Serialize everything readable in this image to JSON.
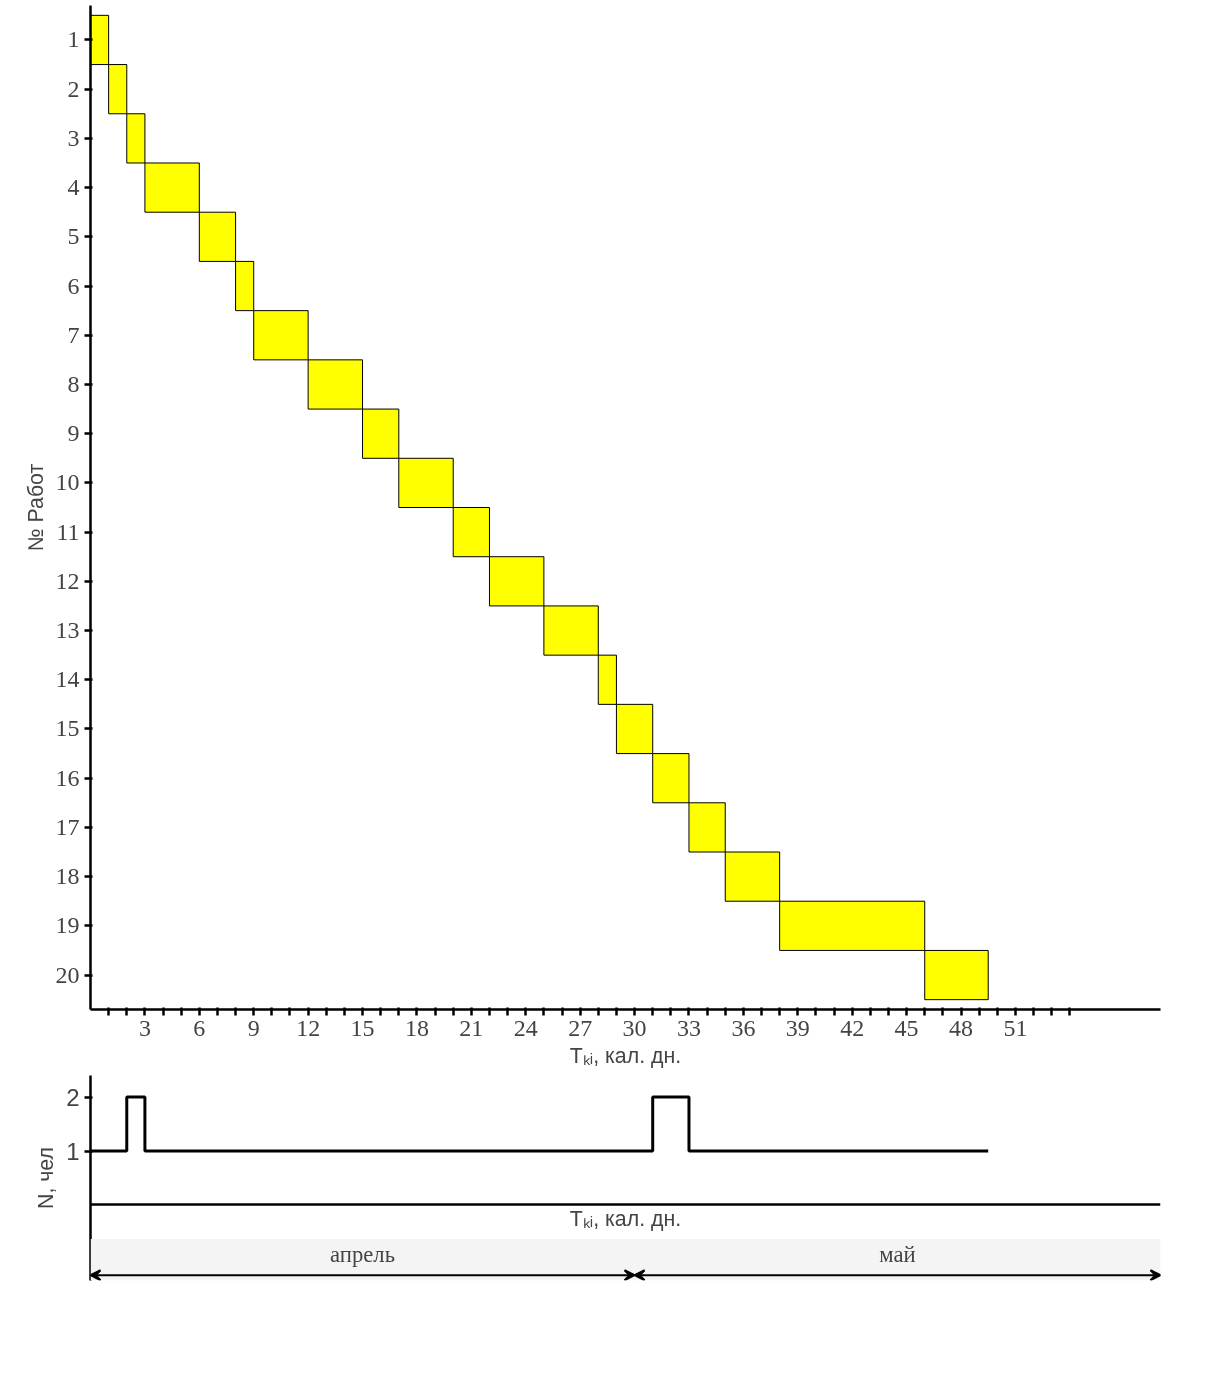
{
  "chart_data": [
    {
      "type": "bar",
      "orientation": "horizontal",
      "ylabel": "№ Работ",
      "xlabel": "Tₖᵢ, кал. дн.",
      "categories": [
        "1",
        "2",
        "3",
        "4",
        "5",
        "6",
        "7",
        "8",
        "9",
        "10",
        "11",
        "12",
        "13",
        "14",
        "15",
        "16",
        "17",
        "18",
        "19",
        "20"
      ],
      "base": [
        0,
        1,
        2,
        3,
        6,
        8,
        9,
        12,
        15,
        17,
        20,
        22,
        25,
        28,
        29,
        31,
        33,
        35,
        38,
        46
      ],
      "values": [
        1,
        1,
        1,
        3,
        2,
        1,
        3,
        3,
        2,
        3,
        2,
        3,
        3,
        1,
        2,
        2,
        2,
        3,
        8,
        3.5
      ],
      "color": "#ffff00",
      "xlim": [
        0,
        59
      ],
      "xticks": [
        {
          "value": 1,
          "label": null
        },
        {
          "value": 2,
          "label": null
        },
        3,
        {
          "value": 4,
          "label": null
        },
        {
          "value": 5,
          "label": null
        },
        6,
        {
          "value": 7,
          "label": null
        },
        {
          "value": 8,
          "label": null
        },
        9,
        {
          "value": 10,
          "label": null
        },
        {
          "value": 11,
          "label": null
        },
        12,
        {
          "value": 13,
          "label": null
        },
        {
          "value": 14,
          "label": null
        },
        15,
        {
          "value": 16,
          "label": null
        },
        {
          "value": 17,
          "label": null
        },
        18,
        {
          "value": 19,
          "label": null
        },
        {
          "value": 20,
          "label": null
        },
        21,
        {
          "value": 22,
          "label": null
        },
        {
          "value": 23,
          "label": null
        },
        24,
        {
          "value": 25,
          "label": null
        },
        {
          "value": 26,
          "label": null
        },
        27,
        {
          "value": 28,
          "label": null
        },
        {
          "value": 29,
          "label": null
        },
        30,
        {
          "value": 31,
          "label": null
        },
        {
          "value": 32,
          "label": null
        },
        33,
        {
          "value": 34,
          "label": null
        },
        {
          "value": 35,
          "label": null
        },
        36,
        {
          "value": 37,
          "label": null
        },
        {
          "value": 38,
          "label": null
        },
        39,
        {
          "value": 40,
          "label": null
        },
        {
          "value": 41,
          "label": null
        },
        42,
        {
          "value": 43,
          "label": null
        },
        {
          "value": 44,
          "label": null
        },
        45,
        {
          "value": 46,
          "label": null
        },
        {
          "value": 47,
          "label": null
        },
        48,
        {
          "value": 49,
          "label": null
        },
        {
          "value": 50,
          "label": null
        },
        51,
        {
          "value": 52,
          "label": null
        },
        {
          "value": 53,
          "label": null
        },
        {
          "value": 54,
          "label": null
        }
      ],
      "grid": false
    },
    {
      "type": "step",
      "ylabel": "N, чел",
      "xlabel": "Tₖᵢ, кал. дн.",
      "x": [
        0,
        2,
        3,
        31,
        33,
        49.5
      ],
      "values": [
        1,
        2,
        1,
        2,
        1,
        1
      ],
      "color": "#000000",
      "xlim": [
        0,
        59
      ],
      "ylim": [
        -1.4,
        2.4
      ],
      "yticks": [
        1,
        2
      ],
      "tick_labels": "y",
      "grid": false,
      "bands": [
        {
          "axis": "x",
          "from": 0,
          "to": 30,
          "label": "апрель",
          "color": "#f4f4f4"
        },
        {
          "axis": "x",
          "from": 30,
          "to": 59,
          "label": "май",
          "color": "#f4f4f4"
        }
      ]
    }
  ]
}
